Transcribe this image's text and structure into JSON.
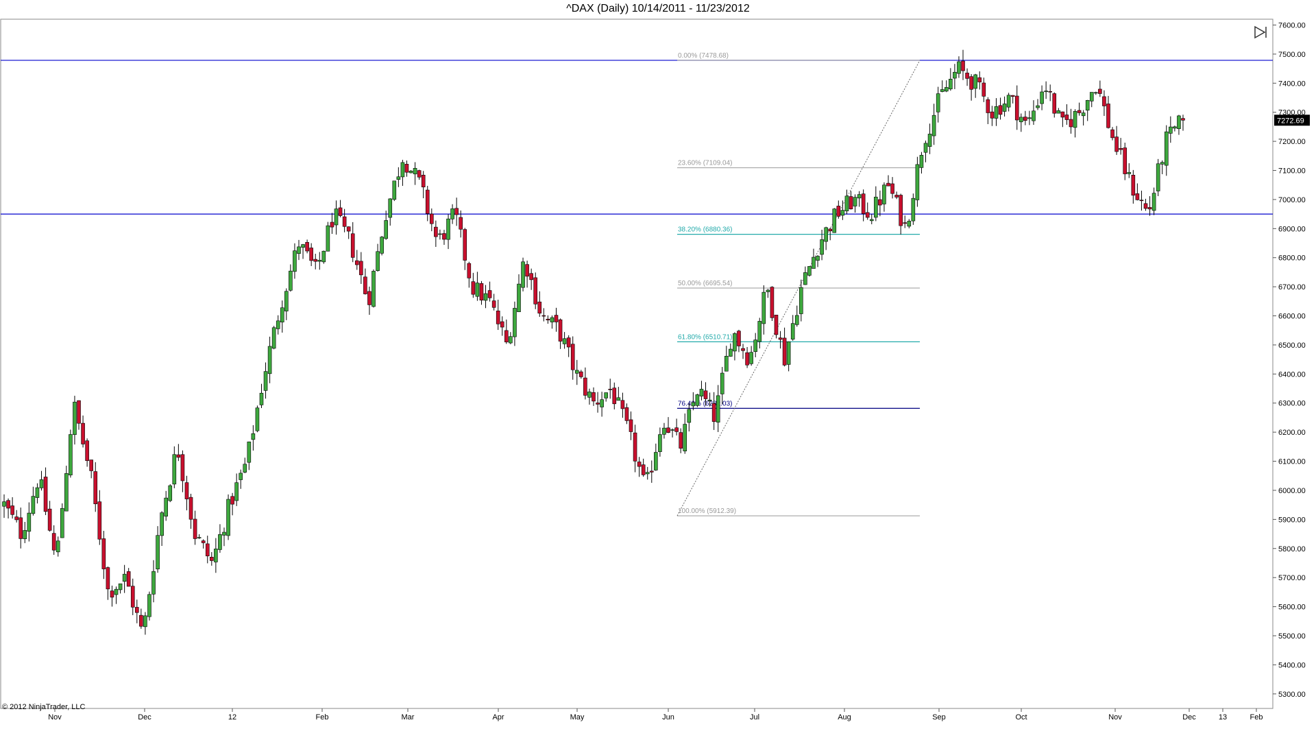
{
  "window": {
    "title": "^DAX (Daily)  10/14/2011 - 11/23/2012"
  },
  "footer": {
    "copyright": "© 2012 NinjaTrader, LLC"
  },
  "toolbar": {
    "nav_icon": "jump-to-end-icon"
  },
  "colors": {
    "up": "#3ea83e",
    "down": "#c8102e",
    "wick": "#000000",
    "hline": "#0000cc",
    "fib_gray": "#999999",
    "fib_teal": "#22aaaa",
    "fib_navy": "#000080",
    "last_price_bg": "#000000"
  },
  "chart_data": {
    "type": "candlestick",
    "title": "^DAX (Daily)  10/14/2011 - 11/23/2012",
    "ylim": [
      5250,
      7620
    ],
    "y_ticks": [
      "7600.00",
      "7500.00",
      "7400.00",
      "7300.00",
      "7200.00",
      "7100.00",
      "7000.00",
      "6900.00",
      "6800.00",
      "6700.00",
      "6600.00",
      "6500.00",
      "6400.00",
      "6300.00",
      "6200.00",
      "6100.00",
      "6000.00",
      "5900.00",
      "5800.00",
      "5700.00",
      "5600.00",
      "5500.00",
      "5400.00",
      "5300.00"
    ],
    "x_ticks": [
      "Nov",
      "Dec",
      "12",
      "Feb",
      "Mar",
      "Apr",
      "May",
      "Jun",
      "Jul",
      "Aug",
      "Sep",
      "Oct",
      "Nov",
      "Dec",
      "13",
      "Feb"
    ],
    "last_price": "7272.69",
    "horizontal_lines": [
      7478.68,
      6950
    ],
    "fibonacci": [
      {
        "label": "0.00% (7478.68)",
        "value": 7478.68,
        "color": "gray"
      },
      {
        "label": "23.60% (7109.04)",
        "value": 7109.04,
        "color": "gray"
      },
      {
        "label": "38.20% (6880.36)",
        "value": 6880.36,
        "color": "teal"
      },
      {
        "label": "50.00% (6695.54)",
        "value": 6695.54,
        "color": "gray"
      },
      {
        "label": "61.80% (6510.71)",
        "value": 6510.71,
        "color": "teal"
      },
      {
        "label": "76.40% (6282.03)",
        "value": 6282.03,
        "color": "navy"
      },
      {
        "label": "100.00% (5912.39)",
        "value": 5912.39,
        "color": "gray"
      }
    ],
    "anchors": [
      5950,
      5850,
      6050,
      5750,
      6300,
      6050,
      5650,
      5700,
      5500,
      5900,
      6150,
      5850,
      5750,
      5950,
      6100,
      6400,
      6650,
      6850,
      6750,
      6950,
      6850,
      6650,
      6950,
      7150,
      7050,
      6850,
      6950,
      6700,
      6650,
      6500,
      6800,
      6600,
      6550,
      6400,
      6300,
      6350,
      6200,
      6000,
      6250,
      6150,
      6350,
      6250,
      6550,
      6450,
      6700,
      6450,
      6700,
      6850,
      6950,
      7000,
      6950,
      7050,
      6900,
      7200,
      7350,
      7450,
      7400,
      7300,
      7350,
      7250,
      7400,
      7250,
      7300,
      7400,
      7200,
      7050,
      6950,
      7200,
      7272.69
    ],
    "candles_count": 285
  }
}
